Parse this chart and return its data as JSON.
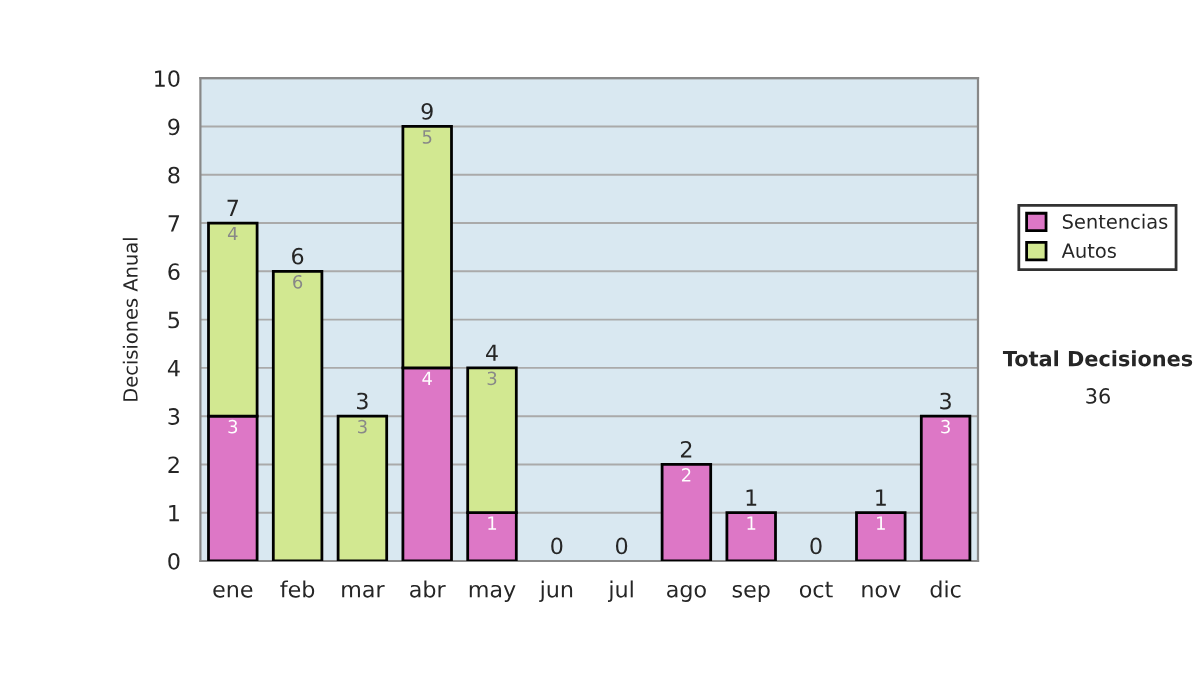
{
  "chart_data": {
    "type": "bar",
    "stacked": true,
    "ylabel": "Decisiones Anual",
    "categories": [
      "ene",
      "feb",
      "mar",
      "abr",
      "may",
      "jun",
      "jul",
      "ago",
      "sep",
      "oct",
      "nov",
      "dic"
    ],
    "series": [
      {
        "name": "Sentencias",
        "color": "#dd77c6",
        "values": [
          3,
          0,
          0,
          4,
          1,
          0,
          0,
          2,
          1,
          0,
          1,
          3
        ],
        "value_labels": [
          "3",
          null,
          null,
          "4",
          "1",
          null,
          null,
          "2",
          "1",
          null,
          "1",
          "3"
        ]
      },
      {
        "name": "Autos",
        "color": "#d2e891",
        "values": [
          4,
          6,
          3,
          5,
          3,
          0,
          0,
          0,
          0,
          0,
          0,
          0
        ],
        "value_labels": [
          "4",
          "6",
          "3",
          "5",
          "3",
          null,
          null,
          null,
          null,
          null,
          null,
          null
        ]
      }
    ],
    "totals": [
      "7",
      "6",
      "3",
      "9",
      "4",
      "0",
      "0",
      "2",
      "1",
      "0",
      "1",
      "3"
    ],
    "ylim": [
      0,
      10
    ],
    "yticks": [
      0,
      1,
      2,
      3,
      4,
      5,
      6,
      7,
      8,
      9,
      10
    ],
    "grid": "y",
    "legend": "right",
    "annotations": [
      "Total Decisiones",
      "36"
    ]
  }
}
